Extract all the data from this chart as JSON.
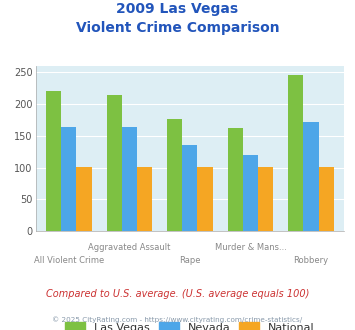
{
  "title_line1": "2009 Las Vegas",
  "title_line2": "Violent Crime Comparison",
  "categories": [
    "All Violent Crime",
    "Aggravated Assault",
    "Rape",
    "Murder & Mans...",
    "Robbery"
  ],
  "series": {
    "Las Vegas": [
      221,
      215,
      177,
      163,
      246
    ],
    "Nevada": [
      164,
      164,
      135,
      120,
      171
    ],
    "National": [
      101,
      101,
      101,
      101,
      101
    ]
  },
  "colors": {
    "Las Vegas": "#7dc142",
    "Nevada": "#4da6e8",
    "National": "#f5a623"
  },
  "ylim": [
    0,
    260
  ],
  "yticks": [
    0,
    50,
    100,
    150,
    200,
    250
  ],
  "plot_bg": "#ddeef4",
  "note": "Compared to U.S. average. (U.S. average equals 100)",
  "footer": "© 2025 CityRating.com - https://www.cityrating.com/crime-statistics/",
  "title_color": "#2255bb",
  "note_color": "#cc3333",
  "footer_color": "#8899aa"
}
